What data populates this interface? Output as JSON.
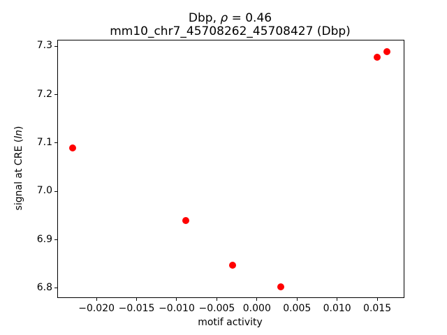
{
  "figure": {
    "background": "#ffffff",
    "text_color": "#000000"
  },
  "chart_data": {
    "type": "scatter",
    "title": "Dbp, ρ = 0.46",
    "title_prefix": "Dbp, ",
    "title_rho": "ρ",
    "title_suffix": " = 0.46",
    "subtitle": "mm10_chr7_45708262_45708427 (Dbp)",
    "xlabel": "motif activity",
    "ylabel": "signal at CRE (ln)",
    "ylabel_prefix": "signal at CRE (",
    "ylabel_italic": "ln",
    "ylabel_suffix": ")",
    "points": {
      "x": [
        -0.023,
        -0.0089,
        -0.003,
        0.003,
        0.015,
        0.0162
      ],
      "y": [
        7.09,
        6.94,
        6.847,
        6.803,
        7.278,
        7.289
      ]
    },
    "marker_color": "#ff0000",
    "marker_size_px": 10,
    "xlim": [
      -0.0248,
      0.0183
    ],
    "ylim": [
      6.781,
      7.312
    ],
    "xticks": [
      -0.02,
      -0.015,
      -0.01,
      -0.005,
      0.0,
      0.005,
      0.01,
      0.015
    ],
    "xtick_labels": [
      "−0.020",
      "−0.015",
      "−0.010",
      "−0.005",
      "0.000",
      "0.005",
      "0.010",
      "0.015"
    ],
    "yticks": [
      6.8,
      6.9,
      7.0,
      7.1,
      7.2,
      7.3
    ],
    "ytick_labels": [
      "6.8",
      "6.9",
      "7.0",
      "7.1",
      "7.2",
      "7.3"
    ],
    "grid": false,
    "legend": null
  }
}
